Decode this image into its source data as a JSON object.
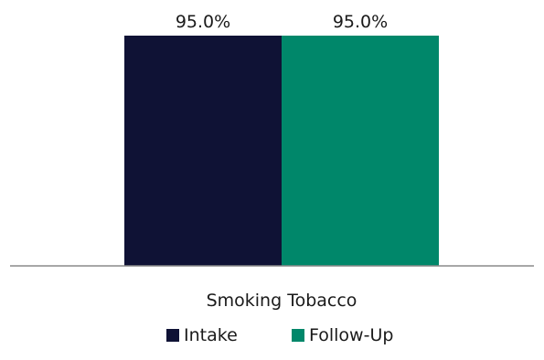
{
  "chart_data": {
    "type": "bar",
    "categories": [
      "Smoking Tobacco"
    ],
    "series": [
      {
        "name": "Intake",
        "values": [
          95.0
        ],
        "color": "#0f1235"
      },
      {
        "name": "Follow-Up",
        "values": [
          95.0
        ],
        "color": "#00876a"
      }
    ],
    "data_labels": [
      "95.0%",
      "95.0%"
    ],
    "value_unit": "%",
    "ylim": [
      0,
      100
    ],
    "y_axis_visible": false,
    "grid": false,
    "legend_position": "bottom-center"
  }
}
